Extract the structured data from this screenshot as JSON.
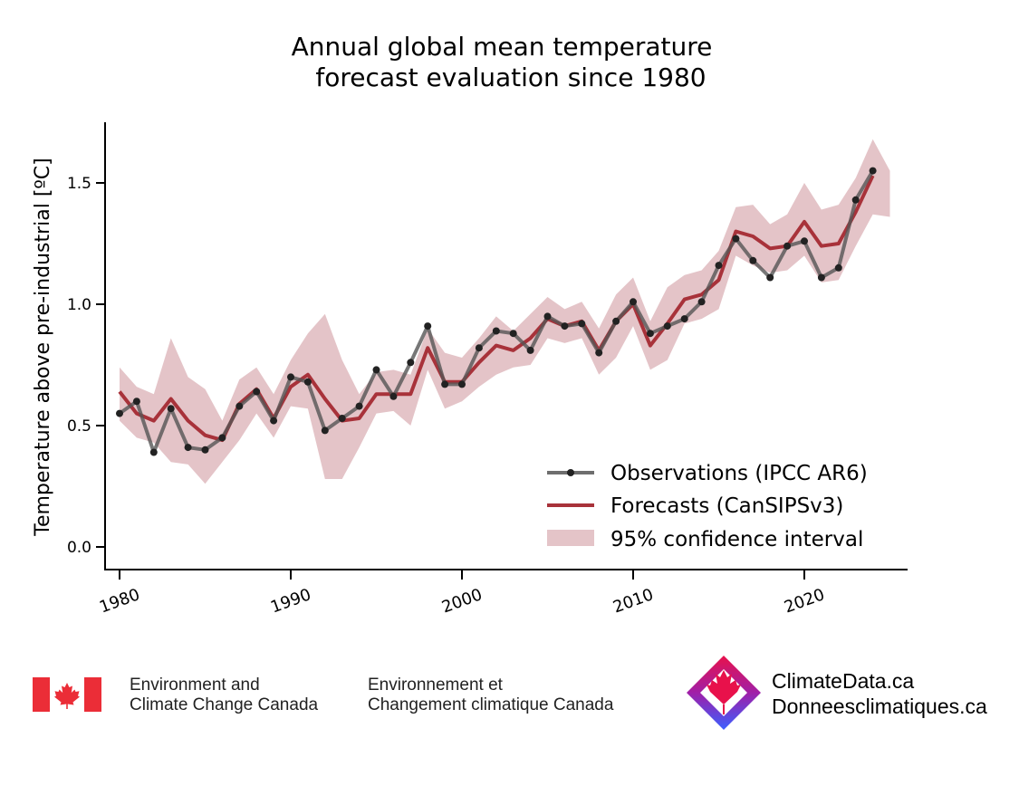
{
  "chart_data": {
    "type": "line",
    "title_line1": "Annual global mean temperature",
    "title_line2": "forecast evaluation since 1980",
    "ylabel": "Temperature above pre-industrial [ºC]",
    "xlabel": "",
    "xlim": [
      1979,
      2029
    ],
    "ylim": [
      -0.1,
      1.75
    ],
    "x_ticks": [
      1980,
      1990,
      2000,
      2010,
      2020
    ],
    "x_tick_labels": [
      "1980",
      "1990",
      "2000",
      "2010",
      "2020"
    ],
    "y_ticks": [
      0.0,
      0.5,
      1.0,
      1.5
    ],
    "y_tick_labels": [
      "0.0",
      "0.5",
      "1.0",
      "1.5"
    ],
    "grid": false,
    "legend_position": "lower-right",
    "series": [
      {
        "name": "Observations (IPCC AR6)",
        "color": "#555555",
        "x": [
          1980,
          1981,
          1982,
          1983,
          1984,
          1985,
          1986,
          1987,
          1988,
          1989,
          1990,
          1991,
          1992,
          1993,
          1994,
          1995,
          1996,
          1997,
          1998,
          1999,
          2000,
          2001,
          2002,
          2003,
          2004,
          2005,
          2006,
          2007,
          2008,
          2009,
          2010,
          2011,
          2012,
          2013,
          2014,
          2015,
          2016,
          2017,
          2018,
          2019,
          2020,
          2021,
          2022,
          2023,
          2024
        ],
        "values": [
          0.55,
          0.6,
          0.39,
          0.57,
          0.41,
          0.4,
          0.45,
          0.58,
          0.64,
          0.52,
          0.7,
          0.68,
          0.48,
          0.53,
          0.58,
          0.73,
          0.62,
          0.76,
          0.91,
          0.67,
          0.67,
          0.82,
          0.89,
          0.88,
          0.81,
          0.95,
          0.91,
          0.92,
          0.8,
          0.93,
          1.01,
          0.88,
          0.91,
          0.94,
          1.01,
          1.16,
          1.27,
          1.18,
          1.11,
          1.24,
          1.26,
          1.11,
          1.15,
          1.43,
          1.55
        ]
      },
      {
        "name": "Forecasts (CanSIPSv3)",
        "color": "#a8323a",
        "x": [
          1980,
          1981,
          1982,
          1983,
          1984,
          1985,
          1986,
          1987,
          1988,
          1989,
          1990,
          1991,
          1992,
          1993,
          1994,
          1995,
          1996,
          1997,
          1998,
          1999,
          2000,
          2001,
          2002,
          2003,
          2004,
          2005,
          2006,
          2007,
          2008,
          2009,
          2010,
          2011,
          2012,
          2013,
          2014,
          2015,
          2016,
          2017,
          2018,
          2019,
          2020,
          2021,
          2022,
          2023,
          2024
        ],
        "values": [
          0.64,
          0.55,
          0.52,
          0.61,
          0.52,
          0.46,
          0.44,
          0.59,
          0.65,
          0.53,
          0.66,
          0.71,
          0.61,
          0.52,
          0.53,
          0.63,
          0.63,
          0.63,
          0.82,
          0.68,
          0.68,
          0.76,
          0.83,
          0.81,
          0.86,
          0.94,
          0.91,
          0.93,
          0.81,
          0.93,
          1.0,
          0.83,
          0.92,
          1.02,
          1.04,
          1.1,
          1.3,
          1.28,
          1.23,
          1.24,
          1.34,
          1.24,
          1.25,
          1.38,
          1.53
        ]
      }
    ],
    "confidence_interval": {
      "name": "95% confidence interval",
      "color": "#c98a92",
      "x": [
        1980,
        1981,
        1982,
        1983,
        1984,
        1985,
        1986,
        1987,
        1988,
        1989,
        1990,
        1991,
        1992,
        1993,
        1994,
        1995,
        1996,
        1997,
        1998,
        1999,
        2000,
        2001,
        2002,
        2003,
        2004,
        2005,
        2006,
        2007,
        2008,
        2009,
        2010,
        2011,
        2012,
        2013,
        2014,
        2015,
        2016,
        2017,
        2018,
        2019,
        2020,
        2021,
        2022,
        2023,
        2024,
        2025
      ],
      "upper": [
        0.74,
        0.66,
        0.63,
        0.86,
        0.7,
        0.65,
        0.52,
        0.69,
        0.74,
        0.63,
        0.77,
        0.88,
        0.96,
        0.77,
        0.63,
        0.72,
        0.73,
        0.71,
        0.9,
        0.8,
        0.78,
        0.86,
        0.95,
        0.89,
        0.96,
        1.03,
        0.98,
        1.01,
        0.9,
        1.04,
        1.11,
        0.93,
        1.07,
        1.12,
        1.14,
        1.22,
        1.4,
        1.41,
        1.33,
        1.37,
        1.5,
        1.39,
        1.41,
        1.52,
        1.68,
        1.55
      ],
      "lower": [
        0.52,
        0.45,
        0.43,
        0.35,
        0.34,
        0.26,
        0.35,
        0.44,
        0.55,
        0.45,
        0.58,
        0.57,
        0.28,
        0.28,
        0.41,
        0.55,
        0.56,
        0.5,
        0.73,
        0.57,
        0.6,
        0.66,
        0.71,
        0.74,
        0.75,
        0.86,
        0.84,
        0.86,
        0.71,
        0.78,
        0.91,
        0.73,
        0.77,
        0.92,
        0.94,
        0.98,
        1.2,
        1.16,
        1.13,
        1.14,
        1.2,
        1.09,
        1.1,
        1.24,
        1.37,
        1.36
      ]
    }
  },
  "footer": {
    "ecc_en_line1": "Environment and",
    "ecc_en_line2": "Climate Change Canada",
    "ecc_fr_line1": "Environnement et",
    "ecc_fr_line2": "Changement climatique Canada",
    "site_en": "ClimateData.ca",
    "site_fr": "Donneesclimatiques.ca",
    "flag_color": "#eb2d37",
    "logo_colors": [
      "#e8114b",
      "#a01fa8",
      "#3b5fff"
    ]
  }
}
